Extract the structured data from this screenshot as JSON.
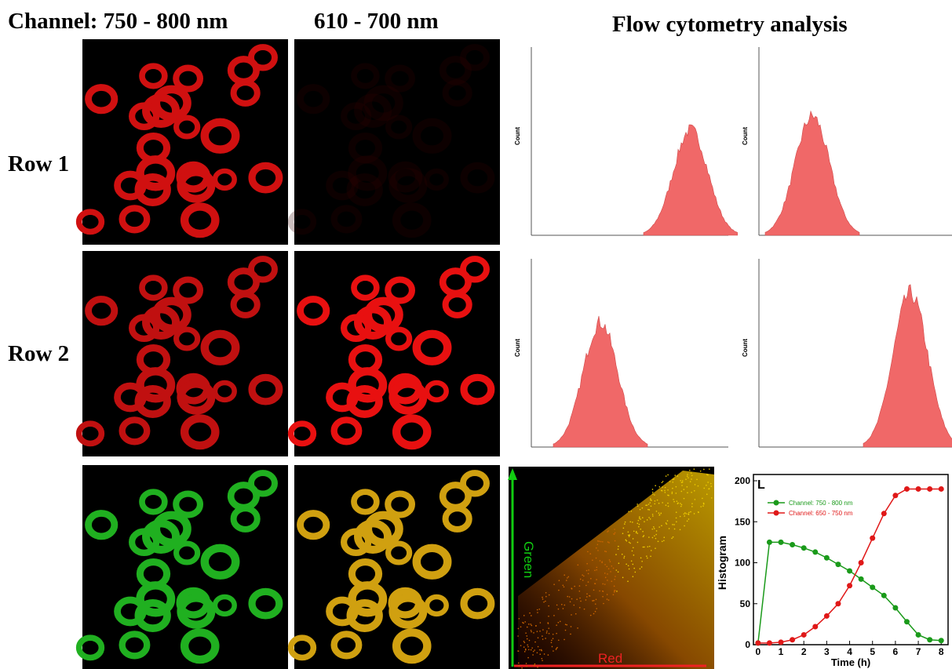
{
  "header": {
    "col1": "Channel: 750 - 800 nm",
    "col2": "610 - 700 nm",
    "col3": "Flow cytometry analysis"
  },
  "rows": [
    "Row 1",
    "Row 2"
  ],
  "flow": {
    "y_label": "Count"
  },
  "scatter": {
    "x_label": "Red",
    "y_label": "Green"
  },
  "chart_data": {
    "type": "line",
    "panel": "L",
    "x_label": "Time (h)",
    "y_label": "Histogram",
    "xlim": [
      -0.2,
      8.3
    ],
    "ylim": [
      0,
      200
    ],
    "xticks": [
      0,
      1,
      2,
      3,
      4,
      5,
      6,
      7,
      8
    ],
    "yticks": [
      0,
      50,
      100,
      150,
      200
    ],
    "x": [
      0,
      0.5,
      1,
      1.5,
      2,
      2.5,
      3,
      3.5,
      4,
      4.5,
      5,
      5.5,
      6,
      6.5,
      7,
      7.5,
      8
    ],
    "series": [
      {
        "name": "Channel: 750 - 800 nm",
        "color": "#1a9a1a",
        "values": [
          2,
          125,
          125,
          122,
          118,
          113,
          106,
          98,
          90,
          80,
          70,
          60,
          45,
          28,
          12,
          6,
          5
        ]
      },
      {
        "name": "Channel: 650 - 750 nm",
        "color": "#e01818",
        "values": [
          2,
          2,
          3,
          6,
          12,
          22,
          35,
          50,
          72,
          100,
          130,
          160,
          182,
          190,
          190,
          190,
          190
        ]
      }
    ]
  }
}
